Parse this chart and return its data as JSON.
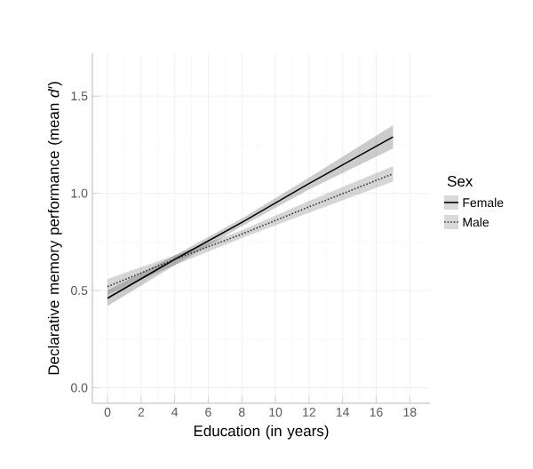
{
  "chart_data": {
    "type": "line",
    "xlabel": "Education (in years)",
    "ylabel": "Declarative memory performance (mean *d*′)",
    "legend_title": "Sex",
    "xlim": [
      -0.9,
      19.2
    ],
    "ylim": [
      -0.08,
      1.72
    ],
    "xticks": [
      0,
      2,
      4,
      6,
      8,
      10,
      12,
      14,
      16,
      18
    ],
    "yticks": [
      {
        "value": 0,
        "label": "0.0"
      },
      {
        "value": 0.5,
        "label": "0.5"
      },
      {
        "value": 1,
        "label": "1.0"
      },
      {
        "value": 1.5,
        "label": "1.5"
      }
    ],
    "grid": true,
    "legend": "right",
    "marker": "none",
    "series": [
      {
        "name": "Female",
        "color": "#000000",
        "line_style": "solid",
        "x": [
          0,
          4,
          8,
          12,
          17
        ],
        "values": [
          0.46,
          0.66,
          0.85,
          1.05,
          1.29
        ],
        "lower": [
          0.42,
          0.63,
          0.83,
          1.02,
          1.23
        ],
        "upper": [
          0.5,
          0.68,
          0.87,
          1.08,
          1.35
        ]
      },
      {
        "name": "Male",
        "color": "#333333",
        "line_style": "dotted",
        "x": [
          0,
          4,
          8,
          12,
          17
        ],
        "values": [
          0.52,
          0.66,
          0.79,
          0.93,
          1.1
        ],
        "lower": [
          0.48,
          0.63,
          0.77,
          0.9,
          1.06
        ],
        "upper": [
          0.56,
          0.68,
          0.81,
          0.96,
          1.14
        ]
      }
    ]
  }
}
